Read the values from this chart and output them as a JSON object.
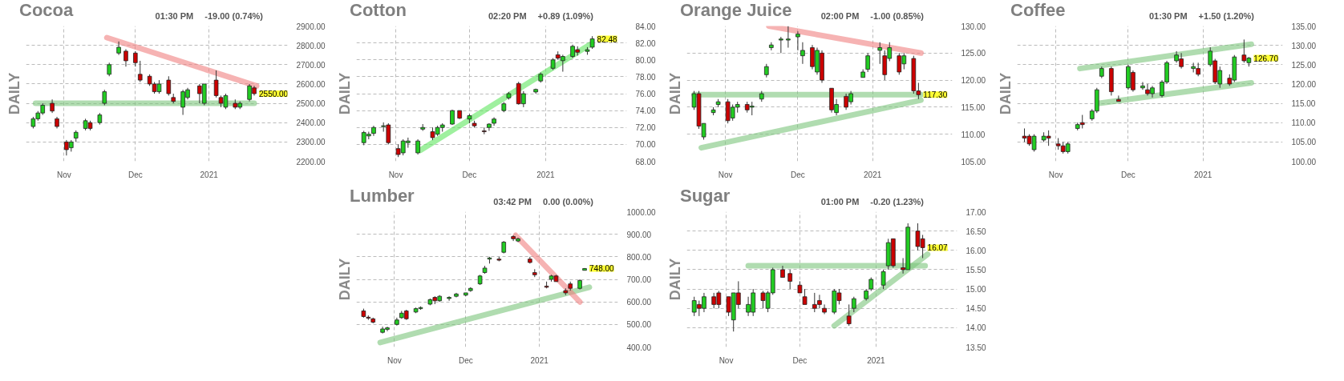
{
  "chart_data": [
    {
      "type": "candlestick",
      "title": "Cocoa",
      "ylabel": "DAILY",
      "annotations": [
        "01:30 PM",
        "-19.00 (0.74%)",
        {
          "text": "2550.00",
          "x": "2021-01-20",
          "y": 2550
        }
      ],
      "x": [
        "2020-10-19",
        "2020-10-21",
        "2020-10-23",
        "2020-10-27",
        "2020-10-29",
        "2020-11-02",
        "2020-11-04",
        "2020-11-06",
        "2020-11-10",
        "2020-11-12",
        "2020-11-16",
        "2020-11-18",
        "2020-11-20",
        "2020-11-24",
        "2020-11-27",
        "2020-12-01",
        "2020-12-03",
        "2020-12-07",
        "2020-12-09",
        "2020-12-11",
        "2020-12-15",
        "2020-12-17",
        "2020-12-21",
        "2020-12-23",
        "2020-12-28",
        "2020-12-30",
        "2021-01-04",
        "2021-01-06",
        "2021-01-08",
        "2021-01-12",
        "2021-01-14",
        "2021-01-18",
        "2021-01-20"
      ],
      "ohlc": [
        [
          2380,
          2430,
          2370,
          2420
        ],
        [
          2420,
          2460,
          2410,
          2450
        ],
        [
          2450,
          2500,
          2440,
          2490
        ],
        [
          2500,
          2520,
          2450,
          2460
        ],
        [
          2420,
          2430,
          2370,
          2380
        ],
        [
          2300,
          2310,
          2230,
          2260
        ],
        [
          2270,
          2310,
          2250,
          2300
        ],
        [
          2320,
          2360,
          2300,
          2350
        ],
        [
          2370,
          2420,
          2360,
          2410
        ],
        [
          2400,
          2410,
          2360,
          2370
        ],
        [
          2400,
          2450,
          2390,
          2440
        ],
        [
          2500,
          2570,
          2490,
          2560
        ],
        [
          2650,
          2710,
          2640,
          2700
        ],
        [
          2760,
          2820,
          2750,
          2790
        ],
        [
          2770,
          2780,
          2690,
          2720
        ],
        [
          2760,
          2770,
          2690,
          2710
        ],
        [
          2650,
          2720,
          2610,
          2620
        ],
        [
          2640,
          2650,
          2590,
          2600
        ],
        [
          2600,
          2610,
          2550,
          2560
        ],
        [
          2560,
          2620,
          2550,
          2600
        ],
        [
          2620,
          2640,
          2540,
          2550
        ],
        [
          2530,
          2550,
          2500,
          2510
        ],
        [
          2480,
          2570,
          2440,
          2560
        ],
        [
          2530,
          2580,
          2520,
          2570
        ],
        [
          2590,
          2600,
          2500,
          2550
        ],
        [
          2500,
          2600,
          2490,
          2600
        ],
        [
          2620,
          2670,
          2530,
          2540
        ],
        [
          2530,
          2540,
          2480,
          2500
        ],
        [
          2480,
          2550,
          2470,
          2540
        ],
        [
          2500,
          2520,
          2470,
          2480
        ],
        [
          2480,
          2510,
          2470,
          2500
        ],
        [
          2520,
          2600,
          2510,
          2590
        ],
        [
          2580,
          2590,
          2540,
          2550
        ]
      ],
      "colors": [
        "#22cc22",
        "#22cc22",
        "#22cc22",
        "#cc0000",
        "#cc0000",
        "#cc0000",
        "#22cc22",
        "#22cc22",
        "#22cc22",
        "#cc0000",
        "#22cc22",
        "#22cc22",
        "#22cc22",
        "#22cc22",
        "#cc0000",
        "#cc0000",
        "#cc0000",
        "#cc0000",
        "#cc0000",
        "#22cc22",
        "#cc0000",
        "#cc0000",
        "#22cc22",
        "#22cc22",
        "#cc0000",
        "#22cc22",
        "#cc0000",
        "#cc0000",
        "#22cc22",
        "#cc0000",
        "#22cc22",
        "#22cc22",
        "#cc0000"
      ],
      "xlim": [
        "2020-10-16",
        "2021-02-03"
      ],
      "xticks": [
        {
          "value": "2020-11-01",
          "label": "Nov"
        },
        {
          "value": "2020-12-01",
          "label": "Dec"
        },
        {
          "value": "2021-01-01",
          "label": "2021"
        }
      ],
      "ylim": [
        2200,
        2900
      ],
      "yticks": [
        {
          "value": 2200,
          "label": "2200.00"
        },
        {
          "value": 2300,
          "label": "2300.00"
        },
        {
          "value": 2400,
          "label": "2400.00"
        },
        {
          "value": 2500,
          "label": "2500.00"
        },
        {
          "value": 2600,
          "label": "2600.00"
        },
        {
          "value": 2700,
          "label": "2700.00"
        },
        {
          "value": 2800,
          "label": "2800.00"
        },
        {
          "value": 2900,
          "label": "2900.00"
        }
      ],
      "grid": true,
      "series": [
        {
          "type": "line",
          "x": [
            "2020-11-19",
            "2021-01-21"
          ],
          "values": [
            2840,
            2590
          ],
          "color": "#f08080"
        },
        {
          "type": "line",
          "x": [
            "2020-10-20",
            "2021-01-20"
          ],
          "values": [
            2500,
            2500
          ],
          "color": "#7cc47c"
        }
      ]
    },
    {
      "type": "candlestick",
      "title": "Cotton",
      "ylabel": "DAILY",
      "annotations": [
        "02:20 PM",
        "+0.89 (1.09%)",
        {
          "text": "82.48",
          "x": "2021-01-20",
          "y": 82.48
        }
      ],
      "x": [
        "2020-10-19",
        "2020-10-21",
        "2020-10-23",
        "2020-10-27",
        "2020-10-29",
        "2020-11-02",
        "2020-11-04",
        "2020-11-06",
        "2020-11-10",
        "2020-11-12",
        "2020-11-16",
        "2020-11-18",
        "2020-11-20",
        "2020-11-24",
        "2020-11-27",
        "2020-12-01",
        "2020-12-03",
        "2020-12-07",
        "2020-12-09",
        "2020-12-11",
        "2020-12-15",
        "2020-12-17",
        "2020-12-21",
        "2020-12-23",
        "2020-12-28",
        "2020-12-30",
        "2021-01-04",
        "2021-01-06",
        "2021-01-08",
        "2021-01-12",
        "2021-01-14",
        "2021-01-18",
        "2021-01-20"
      ],
      "ohlc": [
        [
          70.2,
          71.6,
          69.9,
          71.4
        ],
        [
          71.0,
          71.5,
          70.6,
          71.2
        ],
        [
          71.3,
          72.2,
          71.0,
          72.0
        ],
        [
          72.1,
          72.6,
          71.5,
          72.2
        ],
        [
          72.3,
          72.5,
          70.0,
          70.2
        ],
        [
          69.5,
          70.0,
          68.5,
          68.8
        ],
        [
          69.0,
          70.6,
          68.7,
          70.4
        ],
        [
          70.2,
          70.8,
          69.6,
          70.4
        ],
        [
          69.0,
          70.6,
          68.8,
          70.4
        ],
        [
          71.8,
          72.4,
          71.6,
          72.0
        ],
        [
          71.5,
          72.0,
          70.5,
          70.8
        ],
        [
          71.2,
          72.2,
          71.0,
          72.0
        ],
        [
          72.0,
          72.5,
          71.5,
          72.3
        ],
        [
          72.4,
          74.1,
          72.3,
          74.0
        ],
        [
          74.0,
          74.0,
          73.0,
          73.1
        ],
        [
          73.0,
          73.6,
          72.5,
          73.4
        ],
        [
          72.5,
          72.8,
          72.0,
          72.2
        ],
        [
          71.6,
          72.0,
          71.2,
          71.5
        ],
        [
          72.0,
          72.5,
          71.6,
          72.4
        ],
        [
          72.5,
          73.2,
          72.2,
          73.0
        ],
        [
          74.0,
          75.0,
          73.8,
          74.8
        ],
        [
          75.5,
          76.2,
          75.3,
          76.0
        ],
        [
          77.2,
          77.4,
          74.7,
          74.8
        ],
        [
          74.8,
          76.3,
          74.4,
          76.0
        ],
        [
          76.2,
          76.6,
          76.0,
          76.5
        ],
        [
          77.5,
          78.5,
          77.3,
          78.3
        ],
        [
          79.0,
          80.2,
          78.8,
          80.0
        ],
        [
          80.6,
          81.0,
          80.0,
          80.2
        ],
        [
          79.9,
          80.6,
          78.6,
          80.4
        ],
        [
          80.4,
          81.8,
          80.2,
          81.6
        ],
        [
          81.2,
          81.6,
          80.5,
          80.9
        ],
        [
          81.0,
          81.5,
          80.6,
          81.2
        ],
        [
          81.5,
          82.8,
          81.3,
          82.48
        ]
      ],
      "colors": [
        "#22cc22",
        "#22cc22",
        "#22cc22",
        "#22cc22",
        "#cc0000",
        "#cc0000",
        "#22cc22",
        "#22cc22",
        "#22cc22",
        "#22cc22",
        "#cc0000",
        "#22cc22",
        "#22cc22",
        "#22cc22",
        "#cc0000",
        "#22cc22",
        "#cc0000",
        "#cc0000",
        "#22cc22",
        "#22cc22",
        "#22cc22",
        "#22cc22",
        "#cc0000",
        "#22cc22",
        "#22cc22",
        "#22cc22",
        "#22cc22",
        "#cc0000",
        "#22cc22",
        "#22cc22",
        "#cc0000",
        "#22cc22",
        "#22cc22"
      ],
      "xlim": [
        "2020-10-16",
        "2021-02-03"
      ],
      "xticks": [
        {
          "value": "2020-11-01",
          "label": "Nov"
        },
        {
          "value": "2020-12-01",
          "label": "Dec"
        },
        {
          "value": "2021-01-01",
          "label": "2021"
        }
      ],
      "ylim": [
        68,
        84
      ],
      "yticks": [
        {
          "value": 68,
          "label": "68.00"
        },
        {
          "value": 70,
          "label": "70.00"
        },
        {
          "value": 72,
          "label": "72.00"
        },
        {
          "value": 74,
          "label": "74.00"
        },
        {
          "value": 76,
          "label": "76.00"
        },
        {
          "value": 78,
          "label": "78.00"
        },
        {
          "value": 80,
          "label": "80.00"
        },
        {
          "value": 82,
          "label": "82.00"
        },
        {
          "value": 84,
          "label": "84.00"
        }
      ],
      "grid": true,
      "series": [
        {
          "type": "line",
          "x": [
            "2020-11-11",
            "2021-01-19"
          ],
          "values": [
            69.3,
            81.8
          ],
          "color": "#5fe65f"
        }
      ]
    },
    {
      "type": "candlestick",
      "title": "Orange Juice",
      "ylabel": "DAILY",
      "annotations": [
        "02:00 PM",
        "-1.00 (0.85%)",
        {
          "text": "117.30",
          "x": "2021-01-20",
          "y": 117.3
        }
      ],
      "x": [
        "2020-10-19",
        "2020-10-21",
        "2020-10-23",
        "2020-10-27",
        "2020-10-29",
        "2020-11-02",
        "2020-11-04",
        "2020-11-06",
        "2020-11-10",
        "2020-11-12",
        "2020-11-16",
        "2020-11-18",
        "2020-11-20",
        "2020-11-24",
        "2020-11-27",
        "2020-12-01",
        "2020-12-03",
        "2020-12-07",
        "2020-12-09",
        "2020-12-11",
        "2020-12-15",
        "2020-12-17",
        "2020-12-21",
        "2020-12-23",
        "2020-12-28",
        "2020-12-30",
        "2021-01-04",
        "2021-01-06",
        "2021-01-08",
        "2021-01-12",
        "2021-01-14",
        "2021-01-18",
        "2021-01-20"
      ],
      "ohlc": [
        [
          115,
          118,
          114.5,
          117.5
        ],
        [
          117.5,
          118,
          111,
          111.5
        ],
        [
          109.5,
          112,
          109,
          112
        ],
        [
          114,
          115,
          113.5,
          114.5
        ],
        [
          115.5,
          116.5,
          115,
          116
        ],
        [
          116,
          116.5,
          112,
          112.5
        ],
        [
          113,
          115.5,
          112.5,
          115
        ],
        [
          115,
          116,
          114,
          115.5
        ],
        [
          115.5,
          116,
          114,
          114.5
        ],
        [
          115,
          116,
          113.5,
          115.2
        ],
        [
          116.5,
          118,
          116,
          117.5
        ],
        [
          121,
          123,
          120.5,
          122.5
        ],
        [
          126,
          127,
          125.5,
          126.5
        ],
        [
          127.4,
          128,
          125,
          127.6
        ],
        [
          127.4,
          130,
          126,
          127.6
        ],
        [
          128,
          129,
          125.5,
          128.5
        ],
        [
          124.5,
          127,
          123,
          125.5
        ],
        [
          126,
          126.5,
          122,
          122.5
        ],
        [
          121.5,
          126,
          121,
          125.5
        ],
        [
          125,
          125.5,
          119.5,
          120
        ],
        [
          118.5,
          118.5,
          114,
          114.5
        ],
        [
          114,
          116.5,
          113.5,
          115.5
        ],
        [
          117,
          117.5,
          114.5,
          115
        ],
        [
          116,
          118,
          115.5,
          117.5
        ],
        [
          120.5,
          122,
          120.5,
          121.5
        ],
        [
          122,
          125,
          121.5,
          124.5
        ],
        [
          125.5,
          127,
          123,
          126
        ],
        [
          124.5,
          125.5,
          120,
          121
        ],
        [
          124,
          127,
          123.5,
          126
        ],
        [
          124.5,
          125,
          121,
          121.5
        ],
        [
          123,
          125,
          122,
          124.5
        ],
        [
          124,
          124.5,
          117.5,
          118
        ],
        [
          118,
          119.5,
          116.5,
          117.3
        ]
      ],
      "colors": [
        "#22cc22",
        "#cc0000",
        "#22cc22",
        "#22cc22",
        "#22cc22",
        "#cc0000",
        "#22cc22",
        "#22cc22",
        "#cc0000",
        "#22cc22",
        "#22cc22",
        "#22cc22",
        "#22cc22",
        "#22cc22",
        "#22cc22",
        "#22cc22",
        "#22cc22",
        "#cc0000",
        "#22cc22",
        "#cc0000",
        "#cc0000",
        "#22cc22",
        "#cc0000",
        "#22cc22",
        "#22cc22",
        "#22cc22",
        "#22cc22",
        "#cc0000",
        "#22cc22",
        "#cc0000",
        "#22cc22",
        "#cc0000",
        "#cc0000"
      ],
      "xlim": [
        "2020-10-16",
        "2021-02-03"
      ],
      "xticks": [
        {
          "value": "2020-11-01",
          "label": "Nov"
        },
        {
          "value": "2020-12-01",
          "label": "Dec"
        },
        {
          "value": "2021-01-01",
          "label": "2021"
        }
      ],
      "ylim": [
        105,
        130
      ],
      "yticks": [
        {
          "value": 105,
          "label": "105.00"
        },
        {
          "value": 110,
          "label": "110.00"
        },
        {
          "value": 115,
          "label": "115.00"
        },
        {
          "value": 120,
          "label": "120.00"
        },
        {
          "value": 125,
          "label": "125.00"
        },
        {
          "value": 130,
          "label": "130.00"
        }
      ],
      "grid": true,
      "series": [
        {
          "type": "line",
          "x": [
            "2020-11-19",
            "2021-01-21"
          ],
          "values": [
            130,
            125
          ],
          "color": "#f08080"
        },
        {
          "type": "line",
          "x": [
            "2020-10-19",
            "2021-01-21"
          ],
          "values": [
            117.3,
            117.3
          ],
          "color": "#7cc47c"
        },
        {
          "type": "line",
          "x": [
            "2020-10-22",
            "2021-01-21"
          ],
          "values": [
            107.5,
            116.3
          ],
          "color": "#7cc47c"
        }
      ]
    },
    {
      "type": "candlestick",
      "title": "Coffee",
      "ylabel": "DAILY",
      "annotations": [
        "01:30 PM",
        "+1.50 (1.20%)",
        {
          "text": "126.70",
          "x": "2021-01-20",
          "y": 126.7
        }
      ],
      "x": [
        "2020-10-19",
        "2020-10-21",
        "2020-10-23",
        "2020-10-27",
        "2020-10-29",
        "2020-11-02",
        "2020-11-04",
        "2020-11-06",
        "2020-11-10",
        "2020-11-12",
        "2020-11-16",
        "2020-11-18",
        "2020-11-20",
        "2020-11-24",
        "2020-11-27",
        "2020-12-01",
        "2020-12-03",
        "2020-12-07",
        "2020-12-09",
        "2020-12-11",
        "2020-12-15",
        "2020-12-17",
        "2020-12-21",
        "2020-12-23",
        "2020-12-28",
        "2020-12-30",
        "2021-01-04",
        "2021-01-06",
        "2021-01-08",
        "2021-01-12",
        "2021-01-14",
        "2021-01-18",
        "2021-01-20"
      ],
      "ohlc": [
        [
          106.5,
          108.5,
          105,
          106
        ],
        [
          106.5,
          107,
          104,
          104.5
        ],
        [
          103,
          107,
          102.5,
          106.5
        ],
        [
          105.5,
          107.5,
          105,
          106.5
        ],
        [
          106.5,
          108,
          104,
          106
        ],
        [
          104.5,
          106,
          103,
          104
        ],
        [
          104,
          105,
          102,
          102.5
        ],
        [
          102.5,
          105,
          102,
          104.5
        ],
        [
          108.5,
          110,
          108,
          109.5
        ],
        [
          110,
          112,
          108.5,
          109.5
        ],
        [
          111,
          113.5,
          110.5,
          113
        ],
        [
          113,
          119,
          112.5,
          118.5
        ],
        [
          122,
          124.5,
          121.5,
          124
        ],
        [
          124,
          124.5,
          117,
          118
        ],
        [
          116,
          117,
          115.5,
          115.5
        ],
        [
          119,
          125,
          118.5,
          124.5
        ],
        [
          123,
          123.5,
          118,
          118.5
        ],
        [
          119,
          120.5,
          118.5,
          119.5
        ],
        [
          118.5,
          120,
          117,
          117.5
        ],
        [
          117.5,
          119.5,
          116.5,
          119
        ],
        [
          117,
          121,
          116.5,
          120.5
        ],
        [
          120.5,
          126,
          120,
          125.5
        ],
        [
          126,
          128.5,
          125.5,
          127.5
        ],
        [
          126.5,
          128,
          124,
          124.5
        ],
        [
          124,
          125.5,
          123,
          124.5
        ],
        [
          124,
          125.5,
          122,
          122.5
        ],
        [
          125,
          129.5,
          124.5,
          128.5
        ],
        [
          126,
          126.5,
          120,
          120.5
        ],
        [
          120,
          124.5,
          119,
          123.5
        ],
        [
          121.5,
          122.5,
          119.5,
          120
        ],
        [
          121,
          127.5,
          120.5,
          127
        ],
        [
          127.5,
          131.5,
          125.5,
          126
        ],
        [
          125.5,
          127,
          124.5,
          126.7
        ]
      ],
      "colors": [
        "#cc0000",
        "#cc0000",
        "#22cc22",
        "#22cc22",
        "#cc0000",
        "#cc0000",
        "#cc0000",
        "#22cc22",
        "#22cc22",
        "#cc0000",
        "#22cc22",
        "#22cc22",
        "#22cc22",
        "#cc0000",
        "#cc0000",
        "#22cc22",
        "#cc0000",
        "#22cc22",
        "#cc0000",
        "#22cc22",
        "#22cc22",
        "#22cc22",
        "#22cc22",
        "#cc0000",
        "#22cc22",
        "#cc0000",
        "#22cc22",
        "#cc0000",
        "#22cc22",
        "#cc0000",
        "#22cc22",
        "#cc0000",
        "#22cc22"
      ],
      "xlim": [
        "2020-10-16",
        "2021-02-03"
      ],
      "xticks": [
        {
          "value": "2020-11-01",
          "label": "Nov"
        },
        {
          "value": "2020-12-01",
          "label": "Dec"
        },
        {
          "value": "2021-01-01",
          "label": "2021"
        }
      ],
      "ylim": [
        100,
        135
      ],
      "yticks": [
        {
          "value": 100,
          "label": "100.00"
        },
        {
          "value": 105,
          "label": "105.00"
        },
        {
          "value": 110,
          "label": "110.00"
        },
        {
          "value": 115,
          "label": "115.00"
        },
        {
          "value": 120,
          "label": "120.00"
        },
        {
          "value": 125,
          "label": "125.00"
        },
        {
          "value": 130,
          "label": "130.00"
        },
        {
          "value": 135,
          "label": "135.00"
        }
      ],
      "grid": true,
      "series": [
        {
          "type": "line",
          "x": [
            "2020-11-11",
            "2021-01-21"
          ],
          "values": [
            124,
            130.3
          ],
          "color": "#7cc47c"
        },
        {
          "type": "line",
          "x": [
            "2020-11-19",
            "2021-01-21"
          ],
          "values": [
            115,
            120.3
          ],
          "color": "#7cc47c"
        }
      ]
    },
    {
      "type": "candlestick",
      "title": "Lumber",
      "ylabel": "DAILY",
      "annotations": [
        "03:42 PM",
        "0.00 (0.00%)",
        {
          "text": "748.00",
          "x": "2021-01-20",
          "y": 748
        }
      ],
      "x": [
        "2020-10-19",
        "2020-10-21",
        "2020-10-23",
        "2020-10-27",
        "2020-10-29",
        "2020-11-02",
        "2020-11-04",
        "2020-11-06",
        "2020-11-10",
        "2020-11-12",
        "2020-11-16",
        "2020-11-18",
        "2020-11-20",
        "2020-11-24",
        "2020-11-27",
        "2020-12-01",
        "2020-12-03",
        "2020-12-07",
        "2020-12-09",
        "2020-12-11",
        "2020-12-15",
        "2020-12-17",
        "2020-12-21",
        "2020-12-23",
        "2020-12-28",
        "2020-12-30",
        "2021-01-04",
        "2021-01-06",
        "2021-01-08",
        "2021-01-12",
        "2021-01-14",
        "2021-01-18",
        "2021-01-20"
      ],
      "ohlc": [
        [
          560,
          570,
          530,
          535
        ],
        [
          532,
          540,
          520,
          528
        ],
        [
          525,
          530,
          505,
          510
        ],
        [
          465,
          490,
          460,
          480
        ],
        [
          478,
          490,
          470,
          485
        ],
        [
          500,
          530,
          495,
          520
        ],
        [
          530,
          560,
          525,
          550
        ],
        [
          560,
          565,
          520,
          525
        ],
        [
          555,
          575,
          550,
          570
        ],
        [
          570,
          580,
          565,
          575
        ],
        [
          590,
          615,
          585,
          610
        ],
        [
          620,
          625,
          590,
          605
        ],
        [
          605,
          630,
          600,
          625
        ],
        [
          615,
          625,
          605,
          620
        ],
        [
          625,
          640,
          620,
          635
        ],
        [
          630,
          640,
          625,
          640
        ],
        [
          650,
          665,
          645,
          660
        ],
        [
          680,
          720,
          675,
          715
        ],
        [
          730,
          760,
          725,
          750
        ],
        [
          790,
          800,
          770,
          795
        ],
        [
          790,
          800,
          780,
          785
        ],
        [
          820,
          870,
          815,
          865
        ],
        [
          890,
          895,
          870,
          880
        ],
        [
          870,
          885,
          865,
          880
        ],
        [
          790,
          800,
          770,
          775
        ],
        [
          730,
          745,
          710,
          720
        ],
        [
          670,
          690,
          660,
          665
        ],
        [
          700,
          720,
          690,
          715
        ],
        [
          715,
          720,
          690,
          690
        ],
        [
          650,
          660,
          630,
          640
        ],
        [
          680,
          690,
          650,
          660
        ],
        [
          660,
          700,
          655,
          695
        ],
        [
          740,
          750,
          740,
          748
        ]
      ],
      "colors": [
        "#cc0000",
        "#cc0000",
        "#cc0000",
        "#22cc22",
        "#22cc22",
        "#22cc22",
        "#22cc22",
        "#cc0000",
        "#22cc22",
        "#22cc22",
        "#22cc22",
        "#cc0000",
        "#22cc22",
        "#22cc22",
        "#22cc22",
        "#22cc22",
        "#22cc22",
        "#22cc22",
        "#22cc22",
        "#22cc22",
        "#cc0000",
        "#22cc22",
        "#cc0000",
        "#22cc22",
        "#cc0000",
        "#cc0000",
        "#cc0000",
        "#22cc22",
        "#cc0000",
        "#cc0000",
        "#cc0000",
        "#22cc22",
        "#22cc22"
      ],
      "xlim": [
        "2020-10-16",
        "2021-02-03"
      ],
      "xticks": [
        {
          "value": "2020-11-01",
          "label": "Nov"
        },
        {
          "value": "2020-12-01",
          "label": "Dec"
        },
        {
          "value": "2021-01-01",
          "label": "2021"
        }
      ],
      "ylim": [
        400,
        1000
      ],
      "yticks": [
        {
          "value": 400,
          "label": "400.00"
        },
        {
          "value": 500,
          "label": "500.00"
        },
        {
          "value": 600,
          "label": "600.00"
        },
        {
          "value": 700,
          "label": "700.00"
        },
        {
          "value": 800,
          "label": "800.00"
        },
        {
          "value": 900,
          "label": "900.00"
        },
        {
          "value": 1000,
          "label": "1000.00"
        }
      ],
      "grid": true,
      "series": [
        {
          "type": "line",
          "x": [
            "2020-10-26",
            "2021-01-22"
          ],
          "values": [
            420,
            665
          ],
          "color": "#7cc47c"
        },
        {
          "type": "line",
          "x": [
            "2020-12-22",
            "2021-01-18"
          ],
          "values": [
            895,
            600
          ],
          "color": "#f08080"
        }
      ]
    },
    {
      "type": "candlestick",
      "title": "Sugar",
      "ylabel": "DAILY",
      "annotations": [
        "01:00 PM",
        "-0.20 (1.23%)",
        {
          "text": "16.07",
          "x": "2021-01-20",
          "y": 16.07
        }
      ],
      "x": [
        "2020-10-19",
        "2020-10-21",
        "2020-10-23",
        "2020-10-27",
        "2020-10-29",
        "2020-11-02",
        "2020-11-04",
        "2020-11-06",
        "2020-11-10",
        "2020-11-12",
        "2020-11-16",
        "2020-11-18",
        "2020-11-20",
        "2020-11-24",
        "2020-11-27",
        "2020-12-01",
        "2020-12-03",
        "2020-12-07",
        "2020-12-09",
        "2020-12-11",
        "2020-12-15",
        "2020-12-17",
        "2020-12-21",
        "2020-12-23",
        "2020-12-28",
        "2020-12-30",
        "2021-01-04",
        "2021-01-06",
        "2021-01-08",
        "2021-01-12",
        "2021-01-14",
        "2021-01-18",
        "2021-01-20"
      ],
      "ohlc": [
        [
          14.4,
          14.8,
          14.3,
          14.7
        ],
        [
          14.6,
          14.7,
          14.3,
          14.5
        ],
        [
          14.5,
          14.9,
          14.4,
          14.8
        ],
        [
          14.8,
          14.9,
          14.5,
          14.6
        ],
        [
          14.9,
          14.95,
          14.5,
          14.6
        ],
        [
          14.8,
          14.8,
          14.3,
          14.4
        ],
        [
          14.2,
          14.9,
          13.9,
          14.9
        ],
        [
          14.9,
          15.2,
          14.5,
          14.6
        ],
        [
          14.4,
          14.8,
          14.3,
          14.6
        ],
        [
          14.4,
          15.0,
          14.3,
          14.9
        ],
        [
          14.9,
          14.95,
          14.5,
          14.7
        ],
        [
          14.5,
          14.95,
          14.4,
          14.9
        ],
        [
          14.9,
          15.55,
          14.85,
          15.5
        ],
        [
          15.5,
          15.6,
          15.3,
          15.3
        ],
        [
          15.4,
          15.5,
          15.0,
          15.2
        ],
        [
          15.1,
          15.2,
          14.9,
          14.9
        ],
        [
          14.8,
          15.0,
          14.6,
          14.6
        ],
        [
          14.6,
          14.9,
          14.4,
          14.5
        ],
        [
          14.7,
          14.85,
          14.5,
          14.6
        ],
        [
          14.5,
          14.6,
          14.35,
          14.4
        ],
        [
          14.4,
          15.0,
          14.35,
          14.95
        ],
        [
          14.9,
          15.0,
          14.6,
          14.7
        ],
        [
          14.3,
          14.6,
          14.05,
          14.1
        ],
        [
          14.5,
          14.8,
          14.4,
          14.75
        ],
        [
          14.75,
          15.0,
          14.7,
          14.95
        ],
        [
          15.0,
          15.3,
          14.95,
          15.25
        ],
        [
          15.1,
          15.5,
          15.0,
          15.45
        ],
        [
          15.6,
          16.3,
          15.5,
          16.2
        ],
        [
          16.3,
          16.3,
          15.55,
          15.6
        ],
        [
          15.55,
          15.8,
          15.4,
          15.5
        ],
        [
          15.5,
          16.7,
          15.5,
          16.6
        ],
        [
          16.5,
          16.7,
          16.0,
          16.1
        ],
        [
          16.3,
          16.4,
          15.8,
          16.07
        ]
      ],
      "colors": [
        "#22cc22",
        "#cc0000",
        "#22cc22",
        "#cc0000",
        "#cc0000",
        "#cc0000",
        "#22cc22",
        "#cc0000",
        "#22cc22",
        "#22cc22",
        "#cc0000",
        "#22cc22",
        "#22cc22",
        "#cc0000",
        "#cc0000",
        "#cc0000",
        "#cc0000",
        "#cc0000",
        "#cc0000",
        "#cc0000",
        "#22cc22",
        "#cc0000",
        "#cc0000",
        "#22cc22",
        "#22cc22",
        "#22cc22",
        "#22cc22",
        "#22cc22",
        "#cc0000",
        "#cc0000",
        "#22cc22",
        "#cc0000",
        "#cc0000"
      ],
      "xlim": [
        "2020-10-16",
        "2021-02-03"
      ],
      "xticks": [
        {
          "value": "2020-11-01",
          "label": "Nov"
        },
        {
          "value": "2020-12-01",
          "label": "Dec"
        },
        {
          "value": "2021-01-01",
          "label": "2021"
        }
      ],
      "ylim": [
        13.5,
        17
      ],
      "yticks": [
        {
          "value": 13.5,
          "label": "13.50"
        },
        {
          "value": 14,
          "label": "14.00"
        },
        {
          "value": 14.5,
          "label": "14.50"
        },
        {
          "value": 15,
          "label": "15.00"
        },
        {
          "value": 15.5,
          "label": "15.50"
        },
        {
          "value": 16,
          "label": "16.00"
        },
        {
          "value": 16.5,
          "label": "16.50"
        },
        {
          "value": 17,
          "label": "17.00"
        }
      ],
      "grid": true,
      "series": [
        {
          "type": "line",
          "x": [
            "2020-11-10",
            "2021-01-21"
          ],
          "values": [
            15.6,
            15.6
          ],
          "color": "#7cc47c"
        },
        {
          "type": "line",
          "x": [
            "2020-12-15",
            "2021-01-22"
          ],
          "values": [
            14.05,
            15.9
          ],
          "color": "#7cc47c"
        }
      ]
    }
  ]
}
